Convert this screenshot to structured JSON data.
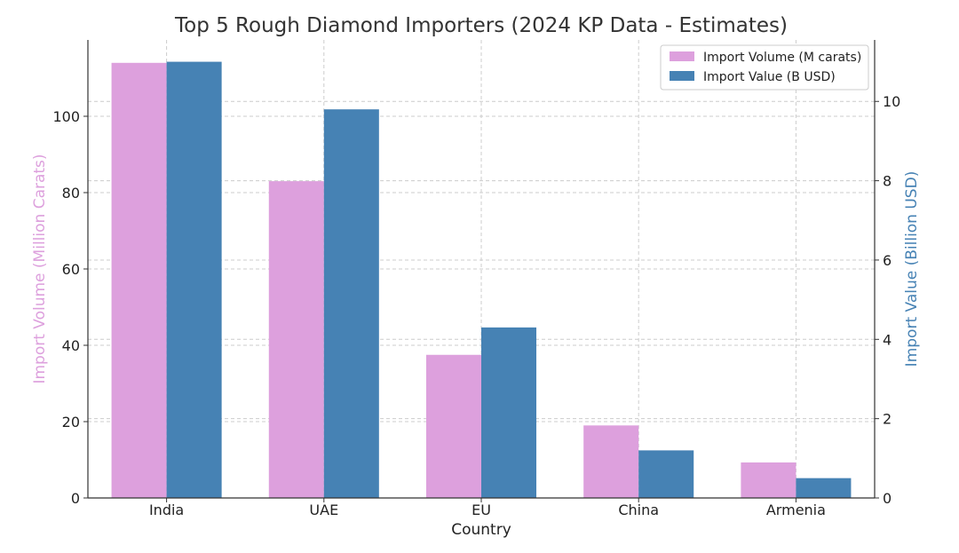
{
  "chart_data": {
    "type": "bar",
    "title": "Top 5 Rough Diamond Importers (2024 KP Data - Estimates)",
    "xlabel": "Country",
    "ylabel_left": "Import Volume (Million Carats)",
    "ylabel_right": "Import Value (Billion USD)",
    "categories": [
      "India",
      "UAE",
      "EU",
      "China",
      "Armenia"
    ],
    "series": [
      {
        "name": "Import Volume (M carats)",
        "axis": "left",
        "color": "#dda0dd",
        "values": [
          114,
          83,
          37.5,
          19,
          9.3
        ]
      },
      {
        "name": "Import Value (B USD)",
        "axis": "right",
        "color": "#4682b4",
        "values": [
          11,
          9.8,
          4.3,
          1.2,
          0.5
        ]
      }
    ],
    "ylim_left": [
      0,
      120
    ],
    "ylim_right": [
      0,
      11.55
    ],
    "yticks_left": [
      "0",
      "20",
      "40",
      "60",
      "80",
      "100"
    ],
    "yticks_right": [
      "0",
      "2",
      "4",
      "6",
      "8",
      "10"
    ],
    "grid": true,
    "legend_position": "top-right",
    "colors": {
      "left_axis_label": "#dda0dd",
      "right_axis_label": "#4682b4"
    }
  }
}
